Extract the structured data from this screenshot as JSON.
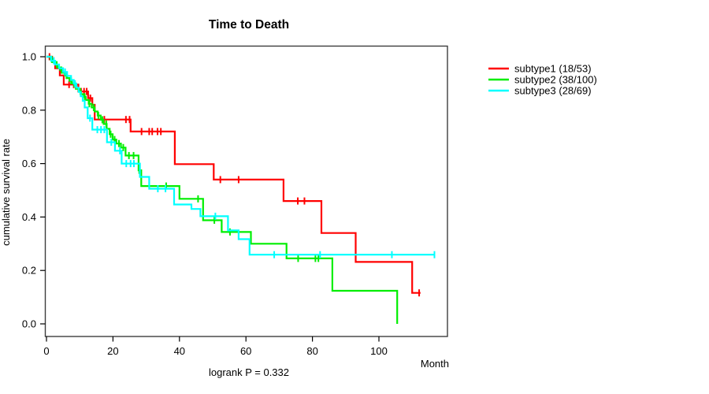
{
  "window": {
    "background": "#ffffff"
  },
  "chart_data": {
    "type": "line",
    "variant": "kaplan_meier_step_curves",
    "title": "Time to Death",
    "xlabel": "Month",
    "ylabel": "cumulative survival rate",
    "footer": "logrank P = 0.332",
    "grid": false,
    "legend_position": "right-outside",
    "xlim": [
      0,
      121
    ],
    "ylim": [
      0.0,
      1.0
    ],
    "x_ticks": [
      "0",
      "20",
      "40",
      "60",
      "80",
      "100"
    ],
    "x_tick_values": [
      0,
      20,
      40,
      60,
      80,
      100
    ],
    "y_ticks": [
      "0.0",
      "0.2",
      "0.4",
      "0.6",
      "0.8",
      "1.0"
    ],
    "y_tick_values": [
      0.0,
      0.2,
      0.4,
      0.6,
      0.8,
      1.0
    ],
    "frame_color": "#3d3d3d",
    "series": [
      {
        "name": "subtype1 (18/53)",
        "color": "#ff0000",
        "start": [
          0,
          1.0
        ],
        "steps": [
          [
            1.7,
            0.981
          ],
          [
            2.6,
            0.957
          ],
          [
            4.0,
            0.93
          ],
          [
            5.2,
            0.896
          ],
          [
            9.6,
            0.87
          ],
          [
            12.5,
            0.845
          ],
          [
            13.8,
            0.82
          ],
          [
            14.5,
            0.765
          ],
          [
            25.3,
            0.72
          ],
          [
            38.6,
            0.598
          ],
          [
            50.3,
            0.54
          ],
          [
            71.3,
            0.46
          ],
          [
            82.7,
            0.34
          ],
          [
            93.0,
            0.232
          ],
          [
            110.0,
            0.116
          ]
        ],
        "end_time": 112.5,
        "censor_times": [
          0.9,
          6.8,
          8.2,
          10.4,
          11.3,
          12.1,
          13.2,
          17.4,
          23.9,
          25.0,
          28.6,
          30.9,
          31.8,
          33.4,
          34.4,
          52.3,
          57.8,
          75.6,
          77.6,
          112.1
        ]
      },
      {
        "name": "subtype2 (38/100)",
        "color": "#00ee00",
        "start": [
          0,
          1.0
        ],
        "steps": [
          [
            1.2,
            0.99
          ],
          [
            2.0,
            0.98
          ],
          [
            2.7,
            0.97
          ],
          [
            3.4,
            0.96
          ],
          [
            4.1,
            0.95
          ],
          [
            4.8,
            0.94
          ],
          [
            5.5,
            0.93
          ],
          [
            6.2,
            0.92
          ],
          [
            6.9,
            0.91
          ],
          [
            7.6,
            0.9
          ],
          [
            8.3,
            0.89
          ],
          [
            9.0,
            0.88
          ],
          [
            9.7,
            0.87
          ],
          [
            10.4,
            0.86
          ],
          [
            11.1,
            0.85
          ],
          [
            11.8,
            0.838
          ],
          [
            12.7,
            0.824
          ],
          [
            13.6,
            0.81
          ],
          [
            14.5,
            0.795
          ],
          [
            15.4,
            0.78
          ],
          [
            16.3,
            0.764
          ],
          [
            17.2,
            0.748
          ],
          [
            18.1,
            0.73
          ],
          [
            19.0,
            0.71
          ],
          [
            19.9,
            0.69
          ],
          [
            21.0,
            0.675
          ],
          [
            22.4,
            0.66
          ],
          [
            23.8,
            0.63
          ],
          [
            27.7,
            0.575
          ],
          [
            28.5,
            0.516
          ],
          [
            40.0,
            0.468
          ],
          [
            47.1,
            0.388
          ],
          [
            52.7,
            0.344
          ],
          [
            61.5,
            0.3
          ],
          [
            72.2,
            0.245
          ],
          [
            86.0,
            0.124
          ],
          [
            105.5,
            0.0
          ]
        ],
        "end_time": 105.5,
        "censor_times": [
          1.6,
          3.1,
          4.5,
          6.0,
          7.4,
          8.8,
          10.2,
          11.5,
          12.9,
          14.2,
          15.6,
          16.8,
          18.0,
          19.3,
          20.5,
          21.8,
          23.1,
          24.8,
          26.2,
          27.9,
          36.0,
          45.6,
          50.5,
          55.2,
          75.7,
          80.9,
          81.8
        ]
      },
      {
        "name": "subtype3 (28/69)",
        "color": "#00ffff",
        "start": [
          0,
          1.0
        ],
        "steps": [
          [
            1.4,
            0.985
          ],
          [
            2.6,
            0.971
          ],
          [
            3.8,
            0.957
          ],
          [
            5.0,
            0.943
          ],
          [
            6.2,
            0.928
          ],
          [
            7.4,
            0.913
          ],
          [
            8.2,
            0.899
          ],
          [
            9.0,
            0.884
          ],
          [
            9.7,
            0.868
          ],
          [
            10.3,
            0.852
          ],
          [
            10.9,
            0.835
          ],
          [
            11.5,
            0.81
          ],
          [
            12.4,
            0.77
          ],
          [
            13.8,
            0.727
          ],
          [
            18.2,
            0.68
          ],
          [
            20.6,
            0.648
          ],
          [
            22.6,
            0.6
          ],
          [
            28.1,
            0.55
          ],
          [
            30.9,
            0.506
          ],
          [
            38.4,
            0.447
          ],
          [
            43.6,
            0.43
          ],
          [
            46.3,
            0.403
          ],
          [
            54.6,
            0.35
          ],
          [
            57.8,
            0.317
          ],
          [
            61.1,
            0.259
          ]
        ],
        "end_time": 116.7,
        "censor_times": [
          2.2,
          5.6,
          8.6,
          13.1,
          15.3,
          16.4,
          17.4,
          19.5,
          22.1,
          24.0,
          25.3,
          26.3,
          33.5,
          35.8,
          50.8,
          68.5,
          82.3,
          103.9,
          116.7
        ]
      }
    ]
  }
}
